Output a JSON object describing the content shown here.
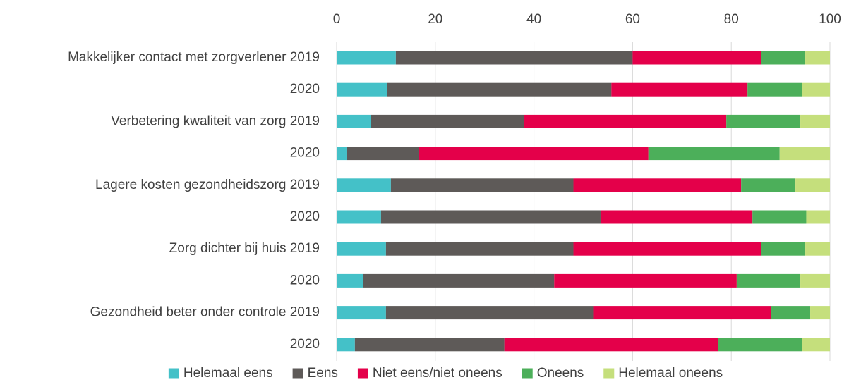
{
  "chart_data": {
    "type": "stacked_bar_horizontal",
    "categories": [
      "Makkelijker contact met zorgverlener 2019",
      "2020",
      "Verbetering kwaliteit van zorg 2019",
      "2020",
      "Lagere kosten gezondheidszorg 2019",
      "2020",
      "Zorg dichter bij huis 2019",
      "2020",
      "Gezondheid beter onder controle 2019",
      "2020"
    ],
    "series": [
      {
        "name": "Helemaal eens",
        "color": "#44c1c8",
        "values": [
          12,
          10.3,
          7,
          2,
          11,
          9,
          10,
          5.4,
          10,
          3.7
        ]
      },
      {
        "name": "Eens",
        "color": "#5e5a58",
        "values": [
          48,
          45.4,
          31,
          14.6,
          37,
          44.5,
          38,
          38.7,
          42,
          30.3
        ]
      },
      {
        "name": "Niet eens/niet oneens",
        "color": "#e4004a",
        "values": [
          26,
          27.6,
          41,
          46.6,
          34,
          30.8,
          38,
          37,
          36,
          43.3
        ]
      },
      {
        "name": "Oneens",
        "color": "#4caf5a",
        "values": [
          9,
          11.1,
          15,
          26.6,
          11,
          10.9,
          9,
          12.9,
          8,
          17.1
        ]
      },
      {
        "name": "Helemaal oneens",
        "color": "#c5df7c",
        "values": [
          5,
          5.6,
          6,
          10.2,
          7,
          4.8,
          5,
          6,
          4,
          5.6
        ]
      }
    ],
    "xlim": [
      0,
      100
    ],
    "xticks": [
      0,
      20,
      40,
      60,
      80,
      100
    ],
    "grid": true,
    "legend": "bottom"
  }
}
